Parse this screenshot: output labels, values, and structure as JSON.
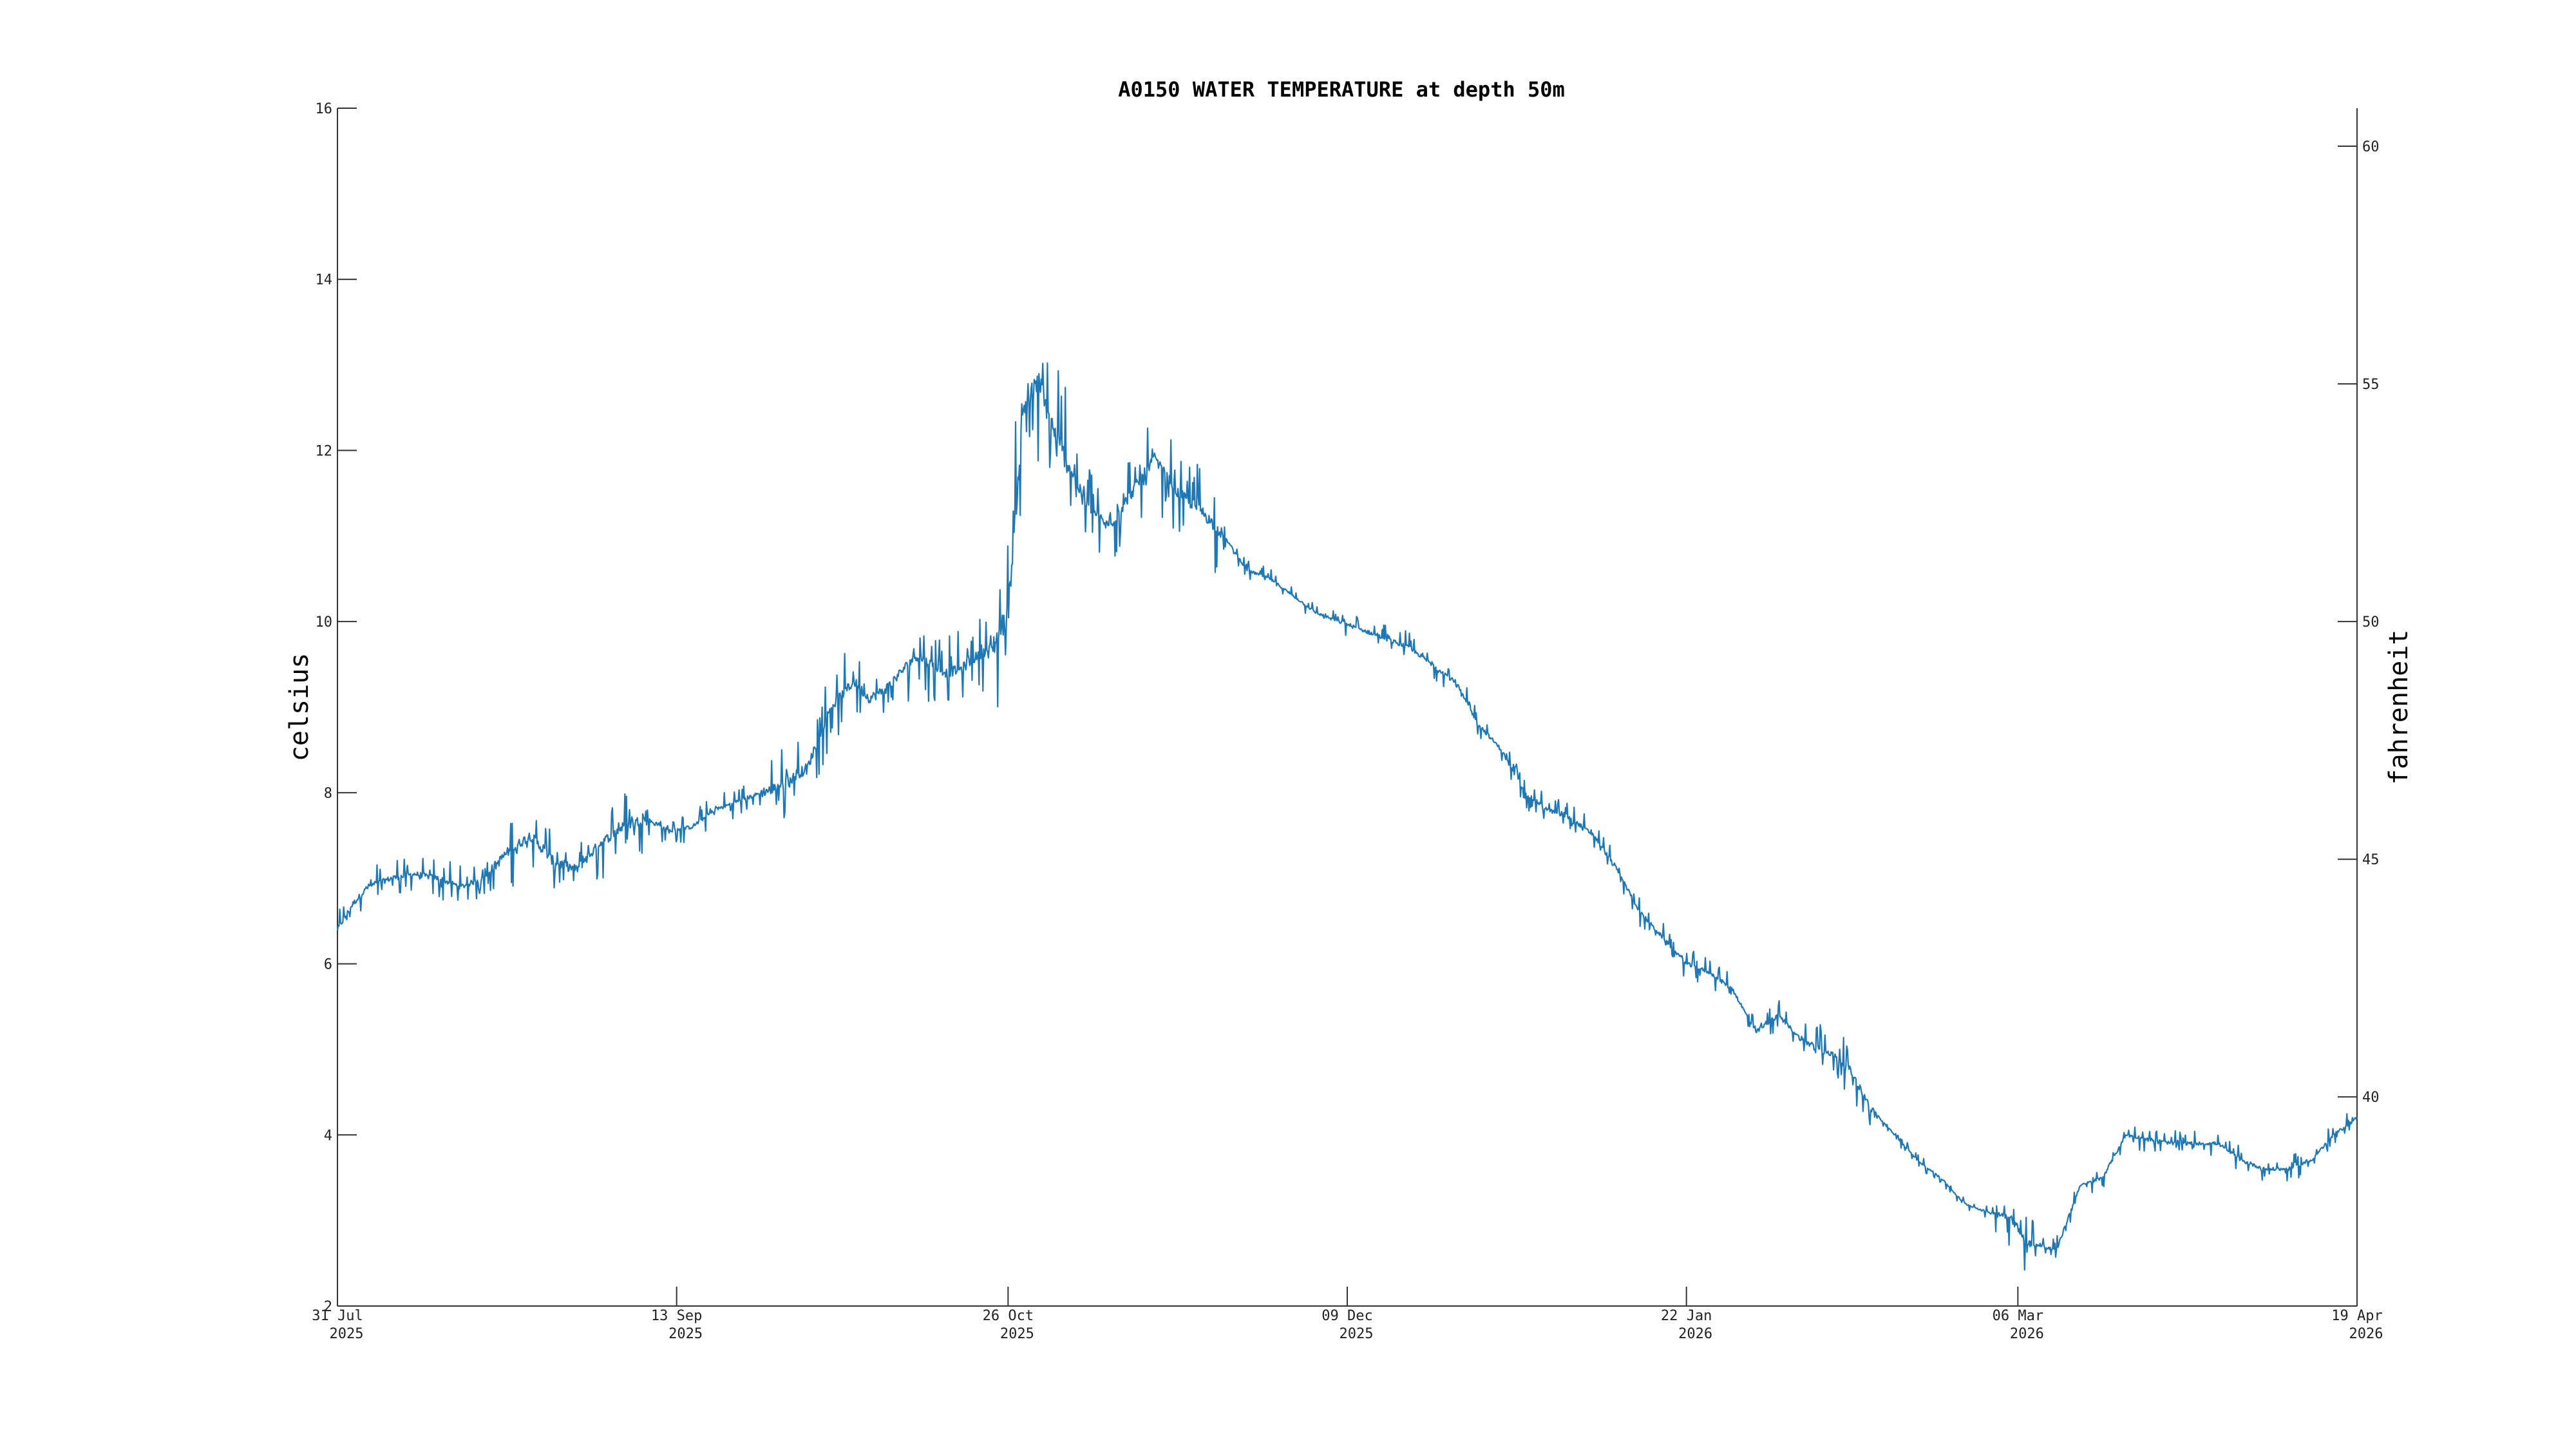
{
  "chart_data": {
    "type": "line",
    "title": "A0150 WATER TEMPERATURE at depth 50m",
    "ylabel": "celsius",
    "ylabel_right": "fahrenheit",
    "ylim": [
      2,
      16
    ],
    "ylim_right_f": [
      35.6,
      60.8
    ],
    "yticks": [
      2,
      4,
      6,
      8,
      10,
      12,
      14,
      16
    ],
    "yticks_right": [
      40,
      45,
      50,
      55,
      60
    ],
    "xlim": [
      "2025-07-31",
      "2026-04-19"
    ],
    "xticks": [
      {
        "date": "2025-07-31",
        "line1": "31 Jul",
        "line2": "2025"
      },
      {
        "date": "2025-09-13",
        "line1": "13 Sep",
        "line2": "2025"
      },
      {
        "date": "2025-10-26",
        "line1": "26 Oct",
        "line2": "2025"
      },
      {
        "date": "2025-12-09",
        "line1": "09 Dec",
        "line2": "2025"
      },
      {
        "date": "2026-01-22",
        "line1": "22 Jan",
        "line2": "2026"
      },
      {
        "date": "2026-03-06",
        "line1": "06 Mar",
        "line2": "2026"
      },
      {
        "date": "2026-04-19",
        "line1": "19 Apr",
        "line2": "2026"
      }
    ],
    "grid": false,
    "series_color": "#1f77b4",
    "series": [
      {
        "x": [
          "2025-07-31",
          "2025-08-02",
          "2025-08-04",
          "2025-08-07",
          "2025-08-10",
          "2025-08-13",
          "2025-08-16",
          "2025-08-19",
          "2025-08-22",
          "2025-08-25",
          "2025-08-28",
          "2025-08-31",
          "2025-09-03",
          "2025-09-06",
          "2025-09-09",
          "2025-09-12",
          "2025-09-15",
          "2025-09-18",
          "2025-09-21",
          "2025-09-24",
          "2025-09-27",
          "2025-09-30",
          "2025-10-03",
          "2025-10-06",
          "2025-10-08",
          "2025-10-10",
          "2025-10-12",
          "2025-10-14",
          "2025-10-16",
          "2025-10-18",
          "2025-10-20",
          "2025-10-22",
          "2025-10-24",
          "2025-10-26",
          "2025-10-28",
          "2025-10-30",
          "2025-11-01",
          "2025-11-03",
          "2025-11-05",
          "2025-11-08",
          "2025-11-11",
          "2025-11-14",
          "2025-11-17",
          "2025-11-20",
          "2025-11-23",
          "2025-11-26",
          "2025-11-29",
          "2025-12-02",
          "2025-12-05",
          "2025-12-08",
          "2025-12-11",
          "2025-12-14",
          "2025-12-17",
          "2025-12-20",
          "2025-12-23",
          "2025-12-26",
          "2025-12-29",
          "2026-01-01",
          "2026-01-04",
          "2026-01-07",
          "2026-01-10",
          "2026-01-13",
          "2026-01-16",
          "2026-01-19",
          "2026-01-22",
          "2026-01-25",
          "2026-01-28",
          "2026-01-31",
          "2026-02-03",
          "2026-02-06",
          "2026-02-09",
          "2026-02-12",
          "2026-02-15",
          "2026-02-18",
          "2026-02-21",
          "2026-02-24",
          "2026-02-27",
          "2026-03-02",
          "2026-03-05",
          "2026-03-06",
          "2026-03-07",
          "2026-03-09",
          "2026-03-11",
          "2026-03-14",
          "2026-03-17",
          "2026-03-20",
          "2026-03-23",
          "2026-03-26",
          "2026-03-29",
          "2026-04-01",
          "2026-04-04",
          "2026-04-07",
          "2026-04-10",
          "2026-04-13",
          "2026-04-16",
          "2026-04-19"
        ],
        "y": [
          6.4,
          6.7,
          6.9,
          7.0,
          7.05,
          7.0,
          6.9,
          7.0,
          7.3,
          7.5,
          7.2,
          7.1,
          7.4,
          7.6,
          7.7,
          7.55,
          7.6,
          7.8,
          7.9,
          8.0,
          8.1,
          8.3,
          9.0,
          9.3,
          9.1,
          9.2,
          9.4,
          9.6,
          9.5,
          9.4,
          9.45,
          9.6,
          9.7,
          10.1,
          12.5,
          12.8,
          12.2,
          11.8,
          11.4,
          11.1,
          11.5,
          11.9,
          11.5,
          11.3,
          11.0,
          10.6,
          10.5,
          10.3,
          10.1,
          10.0,
          9.9,
          9.8,
          9.7,
          9.5,
          9.3,
          8.8,
          8.5,
          8.0,
          7.8,
          7.7,
          7.5,
          7.1,
          6.6,
          6.3,
          6.0,
          5.9,
          5.7,
          5.2,
          5.4,
          5.1,
          5.0,
          4.8,
          4.3,
          4.0,
          3.7,
          3.5,
          3.2,
          3.1,
          3.05,
          2.9,
          2.75,
          2.7,
          2.65,
          3.4,
          3.5,
          4.0,
          3.95,
          3.9,
          3.9,
          3.9,
          3.7,
          3.6,
          3.6,
          3.7,
          4.0,
          4.2
        ]
      }
    ]
  }
}
